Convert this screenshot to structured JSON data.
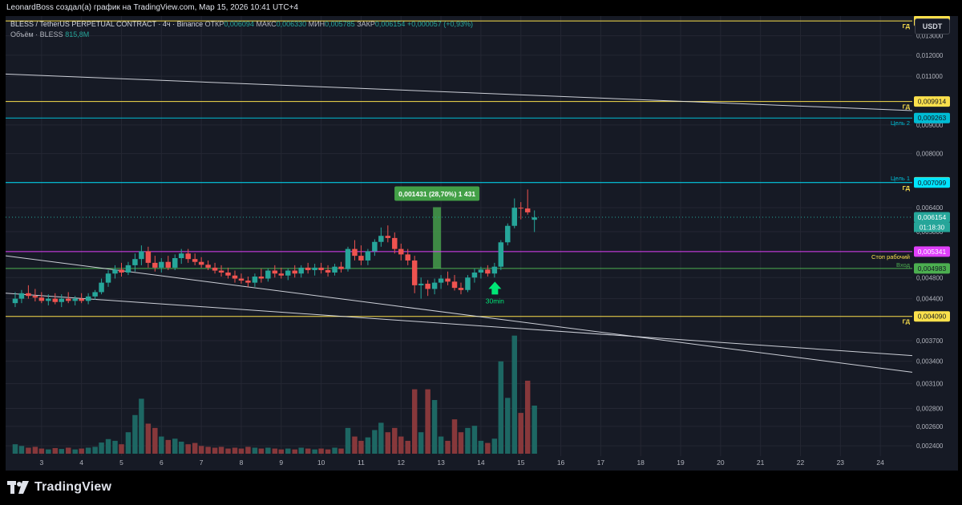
{
  "header": {
    "attribution": "LeonardBoss создал(а) график на TradingView.com, Мар 15, 2026 10:41 UTC+4"
  },
  "legend": {
    "symbol": "BLESS / TetherUS PERPETUAL CONTRACT · 4ч · Binance",
    "open_label": "ОТКР",
    "open": "0,006094",
    "high_label": "МАКС",
    "high": "0,006330",
    "low_label": "МИН",
    "low": "0,005785",
    "close_label": "ЗАКР",
    "close": "0,006154",
    "change": "+0,000057 (+0,93%)",
    "volume_label": "Объём · BLESS",
    "volume": "815,8M"
  },
  "currency_button": "USDT",
  "footer": {
    "brand": "TradingView"
  },
  "colors": {
    "background": "#161a25",
    "grid": "#242733",
    "up": "#26a69a",
    "down": "#ef5350",
    "level_yellow": "#fbe04c",
    "target_cyan": "#00bcd4",
    "stop_magenta": "#e040fb",
    "entry_green": "#4caf50",
    "level_green": "#a5d6a7",
    "trend_white": "#e0e3eb"
  },
  "chart_data": {
    "type": "candlestick",
    "y_axis_scale": "log",
    "ylim": [
      0.0023,
      0.0141
    ],
    "y_ticks": [
      {
        "value": 0.0024,
        "label": "0,002400"
      },
      {
        "value": 0.0026,
        "label": "0,002600"
      },
      {
        "value": 0.0028,
        "label": "0,002800"
      },
      {
        "value": 0.0031,
        "label": "0,003100"
      },
      {
        "value": 0.0034,
        "label": "0,003400"
      },
      {
        "value": 0.0037,
        "label": "0,003700"
      },
      {
        "value": 0.0044,
        "label": "0,004400"
      },
      {
        "value": 0.0048,
        "label": "0,004800"
      },
      {
        "value": 0.0058,
        "label": "0,005800"
      },
      {
        "value": 0.0064,
        "label": "0,006400"
      },
      {
        "value": 0.008,
        "label": "0,008000"
      },
      {
        "value": 0.009,
        "label": "0,009000"
      },
      {
        "value": 0.011,
        "label": "0,011000"
      },
      {
        "value": 0.012,
        "label": "0,012000"
      },
      {
        "value": 0.013,
        "label": "0,013000"
      }
    ],
    "x_ticks": [
      {
        "day": 3,
        "label": "3"
      },
      {
        "day": 4,
        "label": "4"
      },
      {
        "day": 5,
        "label": "5"
      },
      {
        "day": 6,
        "label": "6"
      },
      {
        "day": 7,
        "label": "7"
      },
      {
        "day": 8,
        "label": "8"
      },
      {
        "day": 9,
        "label": "9"
      },
      {
        "day": 10,
        "label": "10"
      },
      {
        "day": 11,
        "label": "11"
      },
      {
        "day": 12,
        "label": "12"
      },
      {
        "day": 13,
        "label": "13"
      },
      {
        "day": 14,
        "label": "14"
      },
      {
        "day": 15,
        "label": "15"
      },
      {
        "day": 16,
        "label": "16"
      },
      {
        "day": 17,
        "label": "17"
      },
      {
        "day": 18,
        "label": "18"
      },
      {
        "day": 19,
        "label": "19"
      },
      {
        "day": 20,
        "label": "20"
      },
      {
        "day": 21,
        "label": "21"
      },
      {
        "day": 22,
        "label": "22"
      },
      {
        "day": 23,
        "label": "23"
      },
      {
        "day": 24,
        "label": "24"
      }
    ],
    "x_range_days": [
      2.1,
      24.8
    ],
    "candles": [
      {
        "t": 2.34,
        "o": 0.00432,
        "h": 0.00452,
        "l": 0.00425,
        "c": 0.0044,
        "v": 22
      },
      {
        "t": 2.5,
        "o": 0.0044,
        "h": 0.00456,
        "l": 0.00432,
        "c": 0.0045,
        "v": 18
      },
      {
        "t": 2.67,
        "o": 0.0045,
        "h": 0.00465,
        "l": 0.0044,
        "c": 0.00445,
        "v": 14
      },
      {
        "t": 2.84,
        "o": 0.00445,
        "h": 0.00458,
        "l": 0.00435,
        "c": 0.00442,
        "v": 16
      },
      {
        "t": 3.0,
        "o": 0.00442,
        "h": 0.00452,
        "l": 0.00432,
        "c": 0.00436,
        "v": 12
      },
      {
        "t": 3.17,
        "o": 0.00436,
        "h": 0.00448,
        "l": 0.00428,
        "c": 0.0044,
        "v": 10
      },
      {
        "t": 3.34,
        "o": 0.0044,
        "h": 0.0045,
        "l": 0.0043,
        "c": 0.00434,
        "v": 13
      },
      {
        "t": 3.5,
        "o": 0.00434,
        "h": 0.00448,
        "l": 0.00425,
        "c": 0.0044,
        "v": 11
      },
      {
        "t": 3.67,
        "o": 0.0044,
        "h": 0.00452,
        "l": 0.00432,
        "c": 0.00436,
        "v": 14
      },
      {
        "t": 3.84,
        "o": 0.00436,
        "h": 0.00445,
        "l": 0.00428,
        "c": 0.0044,
        "v": 10
      },
      {
        "t": 4.0,
        "o": 0.0044,
        "h": 0.0045,
        "l": 0.00432,
        "c": 0.00436,
        "v": 12
      },
      {
        "t": 4.17,
        "o": 0.00436,
        "h": 0.0045,
        "l": 0.0043,
        "c": 0.00444,
        "v": 14
      },
      {
        "t": 4.34,
        "o": 0.00444,
        "h": 0.00456,
        "l": 0.00438,
        "c": 0.00452,
        "v": 16
      },
      {
        "t": 4.5,
        "o": 0.00452,
        "h": 0.00478,
        "l": 0.00448,
        "c": 0.0047,
        "v": 26
      },
      {
        "t": 4.67,
        "o": 0.0047,
        "h": 0.00495,
        "l": 0.00462,
        "c": 0.00488,
        "v": 34
      },
      {
        "t": 4.84,
        "o": 0.00488,
        "h": 0.00505,
        "l": 0.00478,
        "c": 0.00496,
        "v": 30
      },
      {
        "t": 5.0,
        "o": 0.00496,
        "h": 0.0051,
        "l": 0.00482,
        "c": 0.0049,
        "v": 22
      },
      {
        "t": 5.17,
        "o": 0.0049,
        "h": 0.00512,
        "l": 0.00485,
        "c": 0.00505,
        "v": 50
      },
      {
        "t": 5.34,
        "o": 0.00505,
        "h": 0.0053,
        "l": 0.00492,
        "c": 0.00518,
        "v": 90
      },
      {
        "t": 5.5,
        "o": 0.00518,
        "h": 0.00548,
        "l": 0.00505,
        "c": 0.00535,
        "v": 128
      },
      {
        "t": 5.67,
        "o": 0.00535,
        "h": 0.00545,
        "l": 0.005,
        "c": 0.0051,
        "v": 70
      },
      {
        "t": 5.84,
        "o": 0.0051,
        "h": 0.00525,
        "l": 0.00492,
        "c": 0.005,
        "v": 60
      },
      {
        "t": 6.0,
        "o": 0.005,
        "h": 0.0052,
        "l": 0.0049,
        "c": 0.00512,
        "v": 40
      },
      {
        "t": 6.17,
        "o": 0.00512,
        "h": 0.00525,
        "l": 0.00495,
        "c": 0.005,
        "v": 32
      },
      {
        "t": 6.34,
        "o": 0.005,
        "h": 0.00528,
        "l": 0.00495,
        "c": 0.0052,
        "v": 35
      },
      {
        "t": 6.5,
        "o": 0.0052,
        "h": 0.0054,
        "l": 0.00508,
        "c": 0.0053,
        "v": 28
      },
      {
        "t": 6.67,
        "o": 0.0053,
        "h": 0.0054,
        "l": 0.0051,
        "c": 0.00518,
        "v": 22
      },
      {
        "t": 6.84,
        "o": 0.00518,
        "h": 0.0053,
        "l": 0.00505,
        "c": 0.00512,
        "v": 25
      },
      {
        "t": 7.0,
        "o": 0.00512,
        "h": 0.00522,
        "l": 0.005,
        "c": 0.00506,
        "v": 18
      },
      {
        "t": 7.17,
        "o": 0.00506,
        "h": 0.00515,
        "l": 0.00495,
        "c": 0.005,
        "v": 16
      },
      {
        "t": 7.34,
        "o": 0.005,
        "h": 0.0051,
        "l": 0.00488,
        "c": 0.00494,
        "v": 14
      },
      {
        "t": 7.5,
        "o": 0.00494,
        "h": 0.00505,
        "l": 0.00482,
        "c": 0.0049,
        "v": 16
      },
      {
        "t": 7.67,
        "o": 0.0049,
        "h": 0.005,
        "l": 0.00478,
        "c": 0.00484,
        "v": 12
      },
      {
        "t": 7.84,
        "o": 0.00484,
        "h": 0.00494,
        "l": 0.0047,
        "c": 0.00478,
        "v": 14
      },
      {
        "t": 8.0,
        "o": 0.00478,
        "h": 0.00488,
        "l": 0.00468,
        "c": 0.00474,
        "v": 12
      },
      {
        "t": 8.17,
        "o": 0.00474,
        "h": 0.00482,
        "l": 0.00462,
        "c": 0.0047,
        "v": 16
      },
      {
        "t": 8.34,
        "o": 0.0047,
        "h": 0.00488,
        "l": 0.00462,
        "c": 0.00482,
        "v": 14
      },
      {
        "t": 8.5,
        "o": 0.00482,
        "h": 0.00498,
        "l": 0.0047,
        "c": 0.00478,
        "v": 12
      },
      {
        "t": 8.67,
        "o": 0.00478,
        "h": 0.00498,
        "l": 0.00472,
        "c": 0.00494,
        "v": 14
      },
      {
        "t": 8.84,
        "o": 0.00494,
        "h": 0.00505,
        "l": 0.0048,
        "c": 0.00488,
        "v": 12
      },
      {
        "t": 9.0,
        "o": 0.00488,
        "h": 0.005,
        "l": 0.00478,
        "c": 0.00484,
        "v": 10
      },
      {
        "t": 9.17,
        "o": 0.00484,
        "h": 0.00498,
        "l": 0.00475,
        "c": 0.00494,
        "v": 12
      },
      {
        "t": 9.34,
        "o": 0.00494,
        "h": 0.00505,
        "l": 0.0048,
        "c": 0.00488,
        "v": 10
      },
      {
        "t": 9.5,
        "o": 0.00488,
        "h": 0.00505,
        "l": 0.0048,
        "c": 0.005,
        "v": 14
      },
      {
        "t": 9.67,
        "o": 0.005,
        "h": 0.0051,
        "l": 0.00488,
        "c": 0.00495,
        "v": 12
      },
      {
        "t": 9.84,
        "o": 0.00495,
        "h": 0.00508,
        "l": 0.00484,
        "c": 0.005,
        "v": 10
      },
      {
        "t": 10.0,
        "o": 0.005,
        "h": 0.0051,
        "l": 0.00488,
        "c": 0.00495,
        "v": 12
      },
      {
        "t": 10.17,
        "o": 0.00495,
        "h": 0.00505,
        "l": 0.00482,
        "c": 0.0049,
        "v": 10
      },
      {
        "t": 10.34,
        "o": 0.0049,
        "h": 0.00508,
        "l": 0.00484,
        "c": 0.00502,
        "v": 14
      },
      {
        "t": 10.5,
        "o": 0.00502,
        "h": 0.00512,
        "l": 0.0049,
        "c": 0.00497,
        "v": 12
      },
      {
        "t": 10.67,
        "o": 0.00497,
        "h": 0.00545,
        "l": 0.00492,
        "c": 0.0054,
        "v": 60
      },
      {
        "t": 10.84,
        "o": 0.0054,
        "h": 0.0056,
        "l": 0.00515,
        "c": 0.00525,
        "v": 40
      },
      {
        "t": 11.0,
        "o": 0.00525,
        "h": 0.00548,
        "l": 0.00505,
        "c": 0.00515,
        "v": 30
      },
      {
        "t": 11.17,
        "o": 0.00515,
        "h": 0.0054,
        "l": 0.00505,
        "c": 0.00535,
        "v": 38
      },
      {
        "t": 11.34,
        "o": 0.00535,
        "h": 0.00562,
        "l": 0.00525,
        "c": 0.00556,
        "v": 55
      },
      {
        "t": 11.5,
        "o": 0.00556,
        "h": 0.0059,
        "l": 0.00545,
        "c": 0.0057,
        "v": 72
      },
      {
        "t": 11.67,
        "o": 0.0057,
        "h": 0.00595,
        "l": 0.00555,
        "c": 0.00565,
        "v": 50
      },
      {
        "t": 11.84,
        "o": 0.00565,
        "h": 0.00578,
        "l": 0.0053,
        "c": 0.0054,
        "v": 60
      },
      {
        "t": 12.0,
        "o": 0.0054,
        "h": 0.00552,
        "l": 0.00515,
        "c": 0.00528,
        "v": 40
      },
      {
        "t": 12.17,
        "o": 0.00528,
        "h": 0.0054,
        "l": 0.00505,
        "c": 0.00515,
        "v": 30
      },
      {
        "t": 12.34,
        "o": 0.00515,
        "h": 0.00525,
        "l": 0.0045,
        "c": 0.00465,
        "v": 150
      },
      {
        "t": 12.5,
        "o": 0.00465,
        "h": 0.0048,
        "l": 0.0044,
        "c": 0.00468,
        "v": 50
      },
      {
        "t": 12.67,
        "o": 0.00468,
        "h": 0.00475,
        "l": 0.00445,
        "c": 0.00458,
        "v": 150
      },
      {
        "t": 12.84,
        "o": 0.00458,
        "h": 0.00478,
        "l": 0.00448,
        "c": 0.0047,
        "v": 125
      },
      {
        "t": 13.0,
        "o": 0.0047,
        "h": 0.00485,
        "l": 0.00458,
        "c": 0.00478,
        "v": 40
      },
      {
        "t": 13.17,
        "o": 0.00478,
        "h": 0.00492,
        "l": 0.00465,
        "c": 0.00472,
        "v": 30
      },
      {
        "t": 13.34,
        "o": 0.00472,
        "h": 0.00485,
        "l": 0.00455,
        "c": 0.0046,
        "v": 80
      },
      {
        "t": 13.5,
        "o": 0.0046,
        "h": 0.0047,
        "l": 0.00448,
        "c": 0.00456,
        "v": 50
      },
      {
        "t": 13.67,
        "o": 0.00456,
        "h": 0.00485,
        "l": 0.00452,
        "c": 0.0048,
        "v": 60
      },
      {
        "t": 13.84,
        "o": 0.0048,
        "h": 0.00498,
        "l": 0.0047,
        "c": 0.0049,
        "v": 65
      },
      {
        "t": 14.0,
        "o": 0.0049,
        "h": 0.00502,
        "l": 0.00478,
        "c": 0.00496,
        "v": 30
      },
      {
        "t": 14.17,
        "o": 0.00496,
        "h": 0.00505,
        "l": 0.00482,
        "c": 0.00488,
        "v": 25
      },
      {
        "t": 14.34,
        "o": 0.00488,
        "h": 0.0051,
        "l": 0.0048,
        "c": 0.00502,
        "v": 35
      },
      {
        "t": 14.5,
        "o": 0.00502,
        "h": 0.0056,
        "l": 0.00495,
        "c": 0.00555,
        "v": 215
      },
      {
        "t": 14.67,
        "o": 0.00555,
        "h": 0.006,
        "l": 0.00548,
        "c": 0.00594,
        "v": 130
      },
      {
        "t": 14.84,
        "o": 0.00594,
        "h": 0.00665,
        "l": 0.00588,
        "c": 0.0064,
        "v": 275
      },
      {
        "t": 15.0,
        "o": 0.0064,
        "h": 0.00655,
        "l": 0.0061,
        "c": 0.00638,
        "v": 95
      },
      {
        "t": 15.17,
        "o": 0.00638,
        "h": 0.0069,
        "l": 0.00622,
        "c": 0.00628,
        "v": 170
      },
      {
        "t": 15.34,
        "o": 0.00609,
        "h": 0.00633,
        "l": 0.00579,
        "c": 0.00615,
        "v": 112
      }
    ],
    "volume_max": 280,
    "horizontal_levels": [
      {
        "value": 0.013816,
        "price_label": "0,013816",
        "tag": "ГД",
        "color": "#fbe04c",
        "style": "solid"
      },
      {
        "value": 0.009914,
        "price_label": "0,009914",
        "tag": "ГД",
        "color": "#fbe04c",
        "style": "solid"
      },
      {
        "value": 0.009263,
        "price_label": "0,009263",
        "tag": "Цель 2",
        "color": "#00bcd4",
        "style": "solid"
      },
      {
        "value": 0.007108,
        "price_label": "0,007108",
        "tag": "ГД",
        "color": "#fbe04c",
        "style": "none"
      },
      {
        "value": 0.007099,
        "price_label": "0,007099",
        "tag": "Цель 1",
        "color": "#00e5ff",
        "style": "solid"
      },
      {
        "value": 0.006154,
        "price_label": "0,006154",
        "tag": "01:18:30",
        "color": "#26a69a",
        "style": "dotted"
      },
      {
        "value": 0.005341,
        "price_label": "0,005341",
        "tag": "Стоп рабочий",
        "color": "#e040fb",
        "style": "solid"
      },
      {
        "value": 0.004983,
        "price_label": "0,004983",
        "tag": "Вход",
        "color": "#4caf50",
        "style": "solid"
      },
      {
        "value": 0.00409,
        "price_label": "0,004090",
        "tag": "ГД",
        "color": "#fbe04c",
        "style": "solid"
      }
    ],
    "trendlines": [
      {
        "from": {
          "t": 2.1,
          "v": 0.0111
        },
        "to": {
          "t": 24.8,
          "v": 0.00955
        }
      },
      {
        "from": {
          "t": 2.1,
          "v": 0.00525
        },
        "to": {
          "t": 24.8,
          "v": 0.00325
        }
      },
      {
        "from": {
          "t": 2.1,
          "v": 0.0045
        },
        "to": {
          "t": 24.8,
          "v": 0.00348
        }
      }
    ],
    "measure": {
      "t": 12.9,
      "from": 0.004983,
      "to": 0.006414,
      "label": "0,001431 (28,70%) 1 431"
    },
    "arrow": {
      "t": 14.35,
      "v": 0.00472,
      "label": "30min"
    }
  }
}
